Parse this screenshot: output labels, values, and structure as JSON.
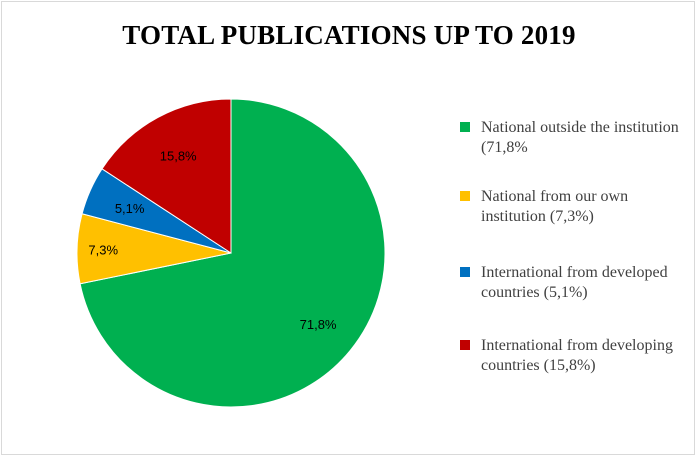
{
  "chart_data": {
    "type": "pie",
    "title": "TOTAL PUBLICATIONS UP TO 2019",
    "slices": [
      {
        "name": "National outside the institution (71,8%",
        "value": 71.8,
        "label": "71,8%",
        "color": "#00b050"
      },
      {
        "name": "National from our own institution (7,3%)",
        "value": 7.3,
        "label": "7,3%",
        "color": "#ffc000"
      },
      {
        "name": "International from developed countries (5,1%)",
        "value": 5.1,
        "label": "5,1%",
        "color": "#0070c0"
      },
      {
        "name": "International from developing countries (15,8%)",
        "value": 15.8,
        "label": "15,8%",
        "color": "#c00000"
      }
    ],
    "legend_position": "right",
    "start_angle": "12 o'clock",
    "direction": "clockwise"
  }
}
